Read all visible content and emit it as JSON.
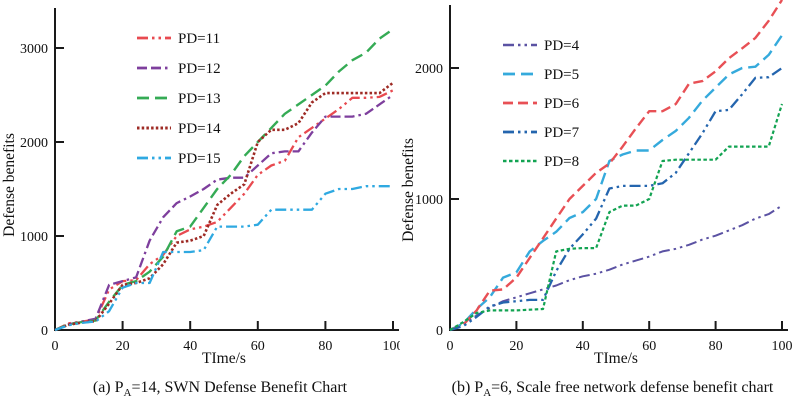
{
  "page": {
    "background": "#ffffff",
    "text_color": "#111111",
    "axis_color": "#1a1a1a"
  },
  "chart_data": [
    {
      "type": "line",
      "id": "a",
      "ylabel": "Defense benefits",
      "xlabel": "TIme/s",
      "caption": {
        "pre": "(a) P",
        "sub": "A",
        "post": "=14, SWN Defense Benefit Chart"
      },
      "x_ticks": [
        0,
        20,
        40,
        60,
        80,
        100
      ],
      "y_ticks": [
        0,
        1000,
        2000,
        3000
      ],
      "xlim": [
        0,
        100
      ],
      "ylim": [
        0,
        3425
      ],
      "grid": false,
      "legend_position": "upper-left-inside",
      "x": [
        0,
        4,
        8,
        12,
        16,
        20,
        24,
        28,
        32,
        36,
        40,
        44,
        48,
        52,
        56,
        60,
        64,
        68,
        72,
        76,
        80,
        84,
        88,
        92,
        96,
        100
      ],
      "series": [
        {
          "name": "PD=11",
          "color": "#e84a50",
          "dash": "dash-dot-dot",
          "width": 2.3,
          "values": [
            0,
            70,
            90,
            110,
            430,
            520,
            530,
            700,
            800,
            1000,
            1070,
            1100,
            1150,
            1300,
            1450,
            1650,
            1750,
            1800,
            2050,
            2150,
            2250,
            2350,
            2470,
            2470,
            2480,
            2550
          ]
        },
        {
          "name": "PD=12",
          "color": "#7e3f9d",
          "dash": "dash-dash-dot",
          "width": 2.3,
          "values": [
            0,
            60,
            90,
            120,
            480,
            520,
            560,
            950,
            1200,
            1350,
            1420,
            1500,
            1600,
            1620,
            1620,
            1750,
            1880,
            1900,
            1900,
            2100,
            2270,
            2270,
            2270,
            2300,
            2400,
            2500
          ]
        },
        {
          "name": "PD=13",
          "color": "#35ab55",
          "dash": "long-dash",
          "width": 2.4,
          "values": [
            0,
            60,
            85,
            100,
            300,
            480,
            520,
            620,
            780,
            1050,
            1100,
            1300,
            1500,
            1650,
            1850,
            2000,
            2150,
            2300,
            2400,
            2500,
            2600,
            2750,
            2870,
            2950,
            3100,
            3200
          ]
        },
        {
          "name": "PD=14",
          "color": "#9e2b25",
          "dash": "dot",
          "width": 2.6,
          "values": [
            0,
            55,
            80,
            95,
            280,
            480,
            500,
            550,
            700,
            930,
            950,
            1000,
            1330,
            1450,
            1550,
            2000,
            2130,
            2130,
            2200,
            2420,
            2520,
            2520,
            2520,
            2520,
            2520,
            2630
          ]
        },
        {
          "name": "PD=15",
          "color": "#2fa9e1",
          "dash": "dash-dot-dot",
          "width": 2.3,
          "values": [
            0,
            50,
            75,
            90,
            200,
            450,
            500,
            500,
            830,
            830,
            830,
            850,
            1100,
            1100,
            1100,
            1120,
            1280,
            1280,
            1280,
            1280,
            1450,
            1500,
            1500,
            1530,
            1530,
            1530
          ]
        }
      ]
    },
    {
      "type": "line",
      "id": "b",
      "ylabel": "Defense benefits",
      "xlabel": "TIme/s",
      "caption": {
        "pre": "(b) P",
        "sub": "A",
        "post": "=6, Scale free network defense benefit chart"
      },
      "x_ticks": [
        0,
        20,
        40,
        60,
        80,
        100
      ],
      "y_ticks": [
        0,
        1000,
        2000
      ],
      "xlim": [
        0,
        100
      ],
      "ylim": [
        0,
        2480
      ],
      "grid": false,
      "legend_position": "upper-left-inside",
      "x": [
        0,
        4,
        8,
        12,
        16,
        20,
        24,
        28,
        32,
        36,
        40,
        44,
        48,
        52,
        56,
        60,
        64,
        68,
        72,
        76,
        80,
        84,
        88,
        92,
        96,
        100
      ],
      "series": [
        {
          "name": "PD=4",
          "color": "#5b52a3",
          "dash": "dash-dot-dot",
          "width": 2.0,
          "values": [
            0,
            50,
            110,
            170,
            220,
            250,
            280,
            310,
            340,
            380,
            410,
            430,
            460,
            500,
            530,
            560,
            600,
            620,
            650,
            690,
            720,
            760,
            800,
            850,
            885,
            950
          ]
        },
        {
          "name": "PD=5",
          "color": "#35aadc",
          "dash": "long-dash",
          "width": 2.4,
          "values": [
            0,
            50,
            160,
            250,
            400,
            440,
            600,
            680,
            750,
            855,
            900,
            1000,
            1290,
            1340,
            1370,
            1370,
            1450,
            1520,
            1620,
            1750,
            1850,
            1950,
            2000,
            2010,
            2100,
            2250
          ]
        },
        {
          "name": "PD=6",
          "color": "#e85055",
          "dash": "dash",
          "width": 2.4,
          "values": [
            0,
            40,
            150,
            300,
            310,
            400,
            550,
            700,
            850,
            1000,
            1100,
            1200,
            1270,
            1400,
            1540,
            1670,
            1670,
            1725,
            1880,
            1900,
            1975,
            2075,
            2150,
            2230,
            2360,
            2520
          ]
        },
        {
          "name": "PD=7",
          "color": "#2465ae",
          "dash": "dash-dot-dot",
          "width": 2.3,
          "values": [
            0,
            30,
            100,
            180,
            210,
            220,
            230,
            230,
            450,
            620,
            730,
            850,
            1080,
            1100,
            1100,
            1100,
            1120,
            1200,
            1350,
            1500,
            1670,
            1680,
            1800,
            1925,
            1930,
            2000
          ]
        },
        {
          "name": "PD=8",
          "color": "#12a352",
          "dash": "short-dash",
          "width": 2.2,
          "values": [
            0,
            60,
            130,
            150,
            150,
            150,
            155,
            160,
            600,
            620,
            625,
            625,
            900,
            950,
            950,
            1000,
            1290,
            1300,
            1300,
            1300,
            1300,
            1400,
            1400,
            1400,
            1400,
            1725
          ]
        }
      ]
    }
  ]
}
